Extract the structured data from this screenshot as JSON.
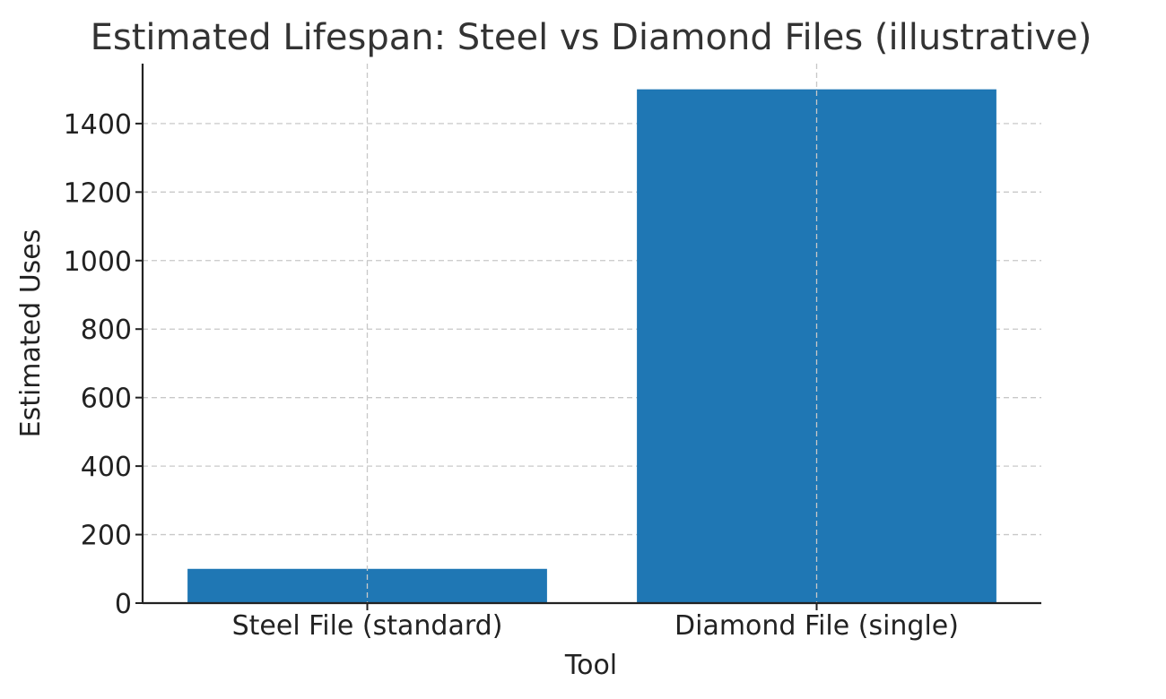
{
  "chart_data": {
    "type": "bar",
    "title": "Estimated Lifespan: Steel vs Diamond Files (illustrative)",
    "xlabel": "Tool",
    "ylabel": "Estimated Uses",
    "categories": [
      "Steel File (standard)",
      "Diamond File (single)"
    ],
    "values": [
      100,
      1500
    ],
    "ylim": [
      0,
      1575
    ],
    "yticks": [
      0,
      200,
      400,
      600,
      800,
      1000,
      1200,
      1400
    ],
    "grid": true,
    "bar_color": "#1f77b4"
  }
}
